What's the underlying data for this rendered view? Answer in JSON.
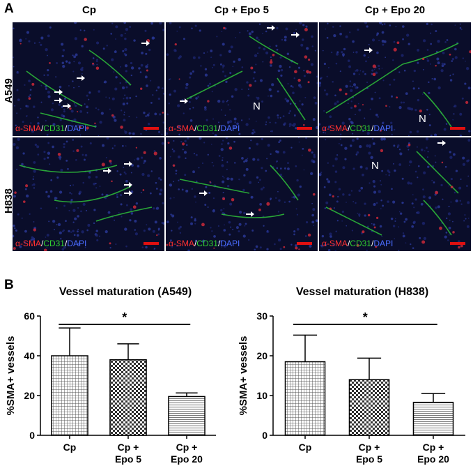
{
  "panel_a": {
    "letter": "A",
    "columns": [
      "Cp",
      "Cp + Epo 5",
      "Cp + Epo 20"
    ],
    "rows": [
      "A549",
      "H838"
    ],
    "stain": {
      "part1": "α-SMA",
      "sep1": "/",
      "part2": "CD31",
      "sep2": "/",
      "part3": "DAPI"
    },
    "n_labels": {
      "a549_epo5": "N",
      "a549_epo20": "N",
      "h838_epo20": "N"
    }
  },
  "panel_b": {
    "letter": "B"
  },
  "chart_data": [
    {
      "type": "bar",
      "title": "Vessel maturation (A549)",
      "ylabel": "%SMA+ vessels",
      "categories": [
        [
          "Cp"
        ],
        [
          "Cp +",
          "Epo 5"
        ],
        [
          "Cp +",
          "Epo 20"
        ]
      ],
      "values": [
        40,
        38,
        19.5
      ],
      "errors": [
        14,
        8,
        1.8
      ],
      "ylim": [
        0,
        60
      ],
      "yticks": [
        0,
        20,
        40,
        60
      ],
      "patterns": [
        "grid",
        "checker",
        "hlines"
      ],
      "significance": {
        "from": 0,
        "to": 2,
        "label": "*"
      }
    },
    {
      "type": "bar",
      "title": "Vessel maturation (H838)",
      "ylabel": "%SMA+ vessels",
      "categories": [
        [
          "Cp"
        ],
        [
          "Cp +",
          "Epo 5"
        ],
        [
          "Cp +",
          "Epo 20"
        ]
      ],
      "values": [
        18.5,
        14,
        8.3
      ],
      "errors": [
        6.7,
        5.4,
        2.2
      ],
      "ylim": [
        0,
        30
      ],
      "yticks": [
        0,
        10,
        20,
        30
      ],
      "patterns": [
        "grid",
        "checker",
        "hlines"
      ],
      "significance": {
        "from": 0,
        "to": 2,
        "label": "*"
      }
    }
  ]
}
